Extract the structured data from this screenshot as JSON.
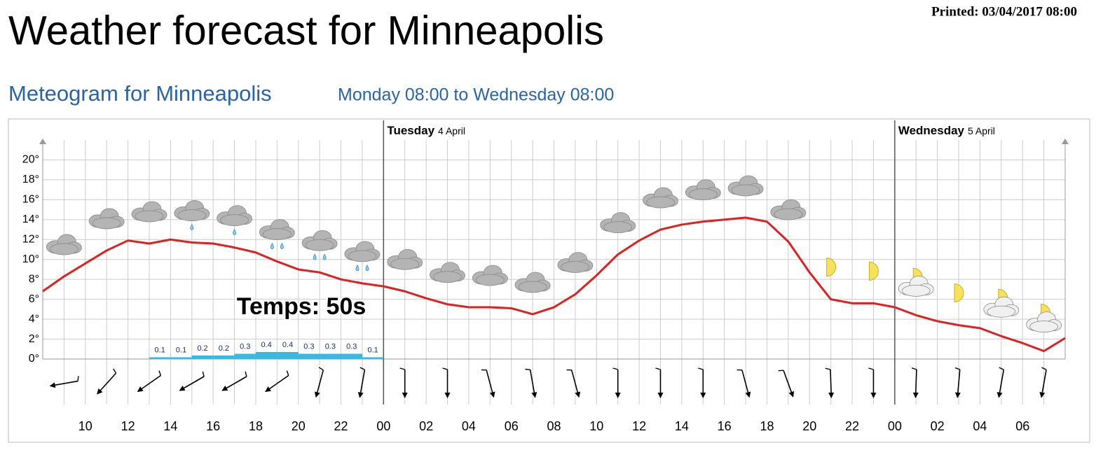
{
  "header": {
    "printed": "Printed: 03/04/2017 08:00",
    "title": "Weather forecast for Minneapolis"
  },
  "chart_data": {
    "type": "line",
    "title": "Meteogram for Minneapolis",
    "subtitle": "Monday 08:00 to Wednesday 08:00",
    "x": [
      8,
      9,
      10,
      11,
      12,
      13,
      14,
      15,
      16,
      17,
      18,
      19,
      20,
      21,
      22,
      23,
      24,
      25,
      26,
      27,
      28,
      29,
      30,
      31,
      32,
      33,
      34,
      35,
      36,
      37,
      38,
      39,
      40,
      41,
      42,
      43,
      44,
      45,
      46,
      47,
      48,
      49,
      50,
      51,
      52,
      53,
      54,
      55,
      56
    ],
    "series": [
      {
        "color": "#e02020",
        "values": [
          6.8,
          8.3,
          9.6,
          10.9,
          11.9,
          11.6,
          12.0,
          11.7,
          11.6,
          11.2,
          10.7,
          9.8,
          9.0,
          8.7,
          8.0,
          7.6,
          7.3,
          6.8,
          6.1,
          5.5,
          5.2,
          5.2,
          5.1,
          4.5,
          5.2,
          6.5,
          8.4,
          10.5,
          11.9,
          13.0,
          13.5,
          13.8,
          14.0,
          14.2,
          13.8,
          11.8,
          8.7,
          6.0,
          5.6,
          5.6,
          5.2,
          4.4,
          3.8,
          3.4,
          3.1,
          2.3,
          1.6,
          0.8,
          2.1
        ]
      }
    ],
    "xlim": [
      8,
      56
    ],
    "xticks": [
      {
        "value": 10,
        "label": "10"
      },
      {
        "value": 12,
        "label": "12"
      },
      {
        "value": 14,
        "label": "14"
      },
      {
        "value": 16,
        "label": "16"
      },
      {
        "value": 18,
        "label": "18"
      },
      {
        "value": 20,
        "label": "20"
      },
      {
        "value": 22,
        "label": "22"
      },
      {
        "value": 24,
        "label": "00"
      },
      {
        "value": 26,
        "label": "02"
      },
      {
        "value": 28,
        "label": "04"
      },
      {
        "value": 30,
        "label": "06"
      },
      {
        "value": 32,
        "label": "08"
      },
      {
        "value": 34,
        "label": "10"
      },
      {
        "value": 36,
        "label": "12"
      },
      {
        "value": 38,
        "label": "14"
      },
      {
        "value": 40,
        "label": "16"
      },
      {
        "value": 42,
        "label": "18"
      },
      {
        "value": 44,
        "label": "20"
      },
      {
        "value": 46,
        "label": "22"
      },
      {
        "value": 48,
        "label": "00"
      },
      {
        "value": 50,
        "label": "02"
      },
      {
        "value": 52,
        "label": "04"
      },
      {
        "value": 54,
        "label": "06"
      }
    ],
    "ylim": [
      0,
      22
    ],
    "yticks": [
      {
        "value": 0,
        "label": "0°"
      },
      {
        "value": 2,
        "label": "2°"
      },
      {
        "value": 4,
        "label": "4°"
      },
      {
        "value": 6,
        "label": "6°"
      },
      {
        "value": 8,
        "label": "8°"
      },
      {
        "value": 10,
        "label": "10°"
      },
      {
        "value": 12,
        "label": "12°"
      },
      {
        "value": 14,
        "label": "14°"
      },
      {
        "value": 16,
        "label": "16°"
      },
      {
        "value": 18,
        "label": "18°"
      },
      {
        "value": 20,
        "label": "20°"
      }
    ],
    "grid": true,
    "days": [
      {
        "x": 24,
        "name": "Tuesday",
        "date": "4 April"
      },
      {
        "x": 48,
        "name": "Wednesday",
        "date": "5 April"
      }
    ],
    "precipitation": {
      "color": "#3bb8e0",
      "x": [
        13,
        14,
        15,
        16,
        17,
        18,
        19,
        20,
        21,
        22,
        23
      ],
      "values": [
        0.1,
        0.1,
        0.2,
        0.2,
        0.3,
        0.4,
        0.4,
        0.3,
        0.3,
        0.3,
        0.1
      ]
    },
    "wind": {
      "x": [
        9,
        11,
        13,
        15,
        17,
        19,
        21,
        23,
        25,
        27,
        29,
        31,
        33,
        35,
        37,
        39,
        41,
        43,
        45,
        47,
        49,
        51,
        53,
        55
      ],
      "direction": [
        260,
        222,
        235,
        240,
        240,
        235,
        195,
        190,
        180,
        180,
        165,
        170,
        165,
        180,
        180,
        180,
        165,
        160,
        178,
        180,
        182,
        185,
        190,
        190
      ]
    },
    "annotation": "Temps: 50s"
  }
}
